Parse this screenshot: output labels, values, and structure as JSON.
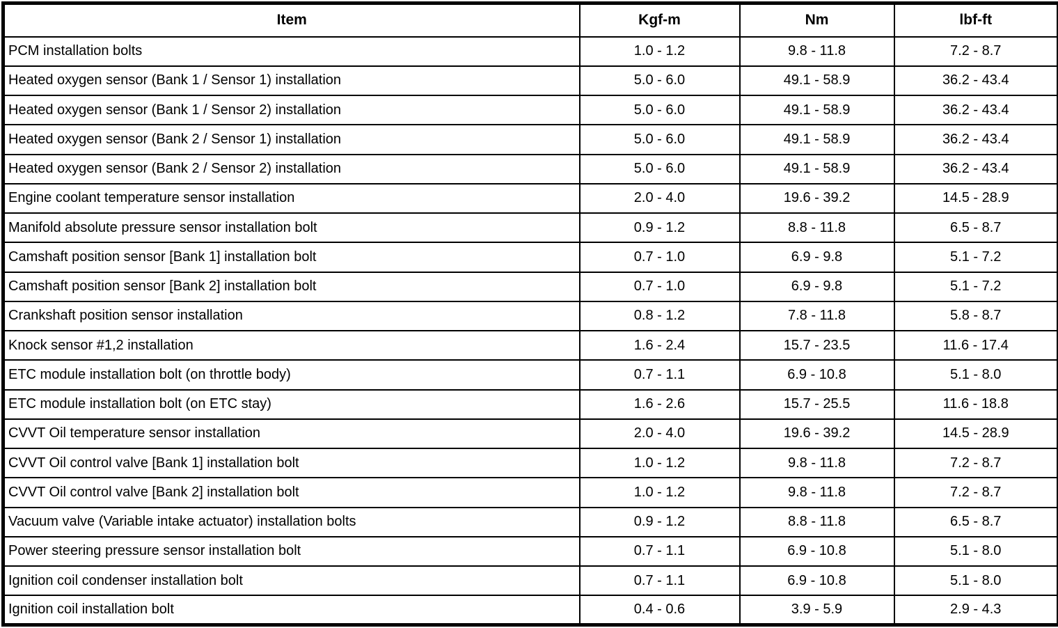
{
  "colors": {
    "border": "#000000",
    "background": "#ffffff",
    "text": "#000000"
  },
  "table": {
    "headers": {
      "item": "Item",
      "kgf_m": "Kgf-m",
      "nm": "Nm",
      "lbf_ft": "lbf-ft"
    },
    "rows": [
      {
        "item": "PCM installation bolts",
        "kgf_m": "1.0 - 1.2",
        "nm": "9.8 - 11.8",
        "lbf_ft": "7.2 - 8.7"
      },
      {
        "item": "Heated oxygen sensor (Bank 1 / Sensor 1) installation",
        "kgf_m": "5.0 - 6.0",
        "nm": "49.1 - 58.9",
        "lbf_ft": "36.2 - 43.4"
      },
      {
        "item": "Heated oxygen sensor (Bank 1 / Sensor 2) installation",
        "kgf_m": "5.0 - 6.0",
        "nm": "49.1 - 58.9",
        "lbf_ft": "36.2 - 43.4"
      },
      {
        "item": "Heated oxygen sensor (Bank 2 / Sensor 1) installation",
        "kgf_m": "5.0 - 6.0",
        "nm": "49.1 - 58.9",
        "lbf_ft": "36.2 - 43.4"
      },
      {
        "item": "Heated oxygen sensor (Bank 2 / Sensor 2) installation",
        "kgf_m": "5.0 - 6.0",
        "nm": "49.1 - 58.9",
        "lbf_ft": "36.2 - 43.4"
      },
      {
        "item": "Engine coolant temperature sensor installation",
        "kgf_m": "2.0 - 4.0",
        "nm": "19.6 - 39.2",
        "lbf_ft": "14.5 - 28.9"
      },
      {
        "item": "Manifold absolute pressure sensor installation bolt",
        "kgf_m": "0.9 - 1.2",
        "nm": "8.8 - 11.8",
        "lbf_ft": "6.5 - 8.7"
      },
      {
        "item": "Camshaft position sensor [Bank 1] installation bolt",
        "kgf_m": "0.7 - 1.0",
        "nm": "6.9 - 9.8",
        "lbf_ft": "5.1 - 7.2"
      },
      {
        "item": "Camshaft position sensor [Bank 2] installation bolt",
        "kgf_m": "0.7 - 1.0",
        "nm": "6.9 - 9.8",
        "lbf_ft": "5.1 - 7.2"
      },
      {
        "item": "Crankshaft position sensor installation",
        "kgf_m": "0.8 - 1.2",
        "nm": "7.8 - 11.8",
        "lbf_ft": "5.8 - 8.7"
      },
      {
        "item": "Knock sensor #1,2 installation",
        "kgf_m": "1.6 - 2.4",
        "nm": "15.7 - 23.5",
        "lbf_ft": "11.6 - 17.4"
      },
      {
        "item": "ETC module installation bolt (on throttle body)",
        "kgf_m": "0.7 - 1.1",
        "nm": "6.9 - 10.8",
        "lbf_ft": "5.1 - 8.0"
      },
      {
        "item": "ETC module installation bolt (on ETC stay)",
        "kgf_m": "1.6 - 2.6",
        "nm": "15.7 - 25.5",
        "lbf_ft": "11.6 - 18.8"
      },
      {
        "item": "CVVT Oil temperature sensor installation",
        "kgf_m": "2.0 - 4.0",
        "nm": "19.6 - 39.2",
        "lbf_ft": "14.5 - 28.9"
      },
      {
        "item": "CVVT Oil control valve [Bank 1] installation bolt",
        "kgf_m": "1.0 - 1.2",
        "nm": "9.8 - 11.8",
        "lbf_ft": "7.2 - 8.7"
      },
      {
        "item": "CVVT Oil control valve [Bank 2] installation bolt",
        "kgf_m": "1.0 - 1.2",
        "nm": "9.8 - 11.8",
        "lbf_ft": "7.2 - 8.7"
      },
      {
        "item": "Vacuum valve (Variable intake actuator) installation bolts",
        "kgf_m": "0.9 - 1.2",
        "nm": "8.8 - 11.8",
        "lbf_ft": "6.5 - 8.7"
      },
      {
        "item": "Power steering pressure sensor installation bolt",
        "kgf_m": "0.7 - 1.1",
        "nm": "6.9 - 10.8",
        "lbf_ft": "5.1 - 8.0"
      },
      {
        "item": "Ignition coil condenser installation bolt",
        "kgf_m": "0.7 - 1.1",
        "nm": "6.9 - 10.8",
        "lbf_ft": "5.1 - 8.0"
      },
      {
        "item": "Ignition coil installation bolt",
        "kgf_m": "0.4 - 0.6",
        "nm": "3.9 - 5.9",
        "lbf_ft": "2.9 - 4.3"
      }
    ]
  }
}
